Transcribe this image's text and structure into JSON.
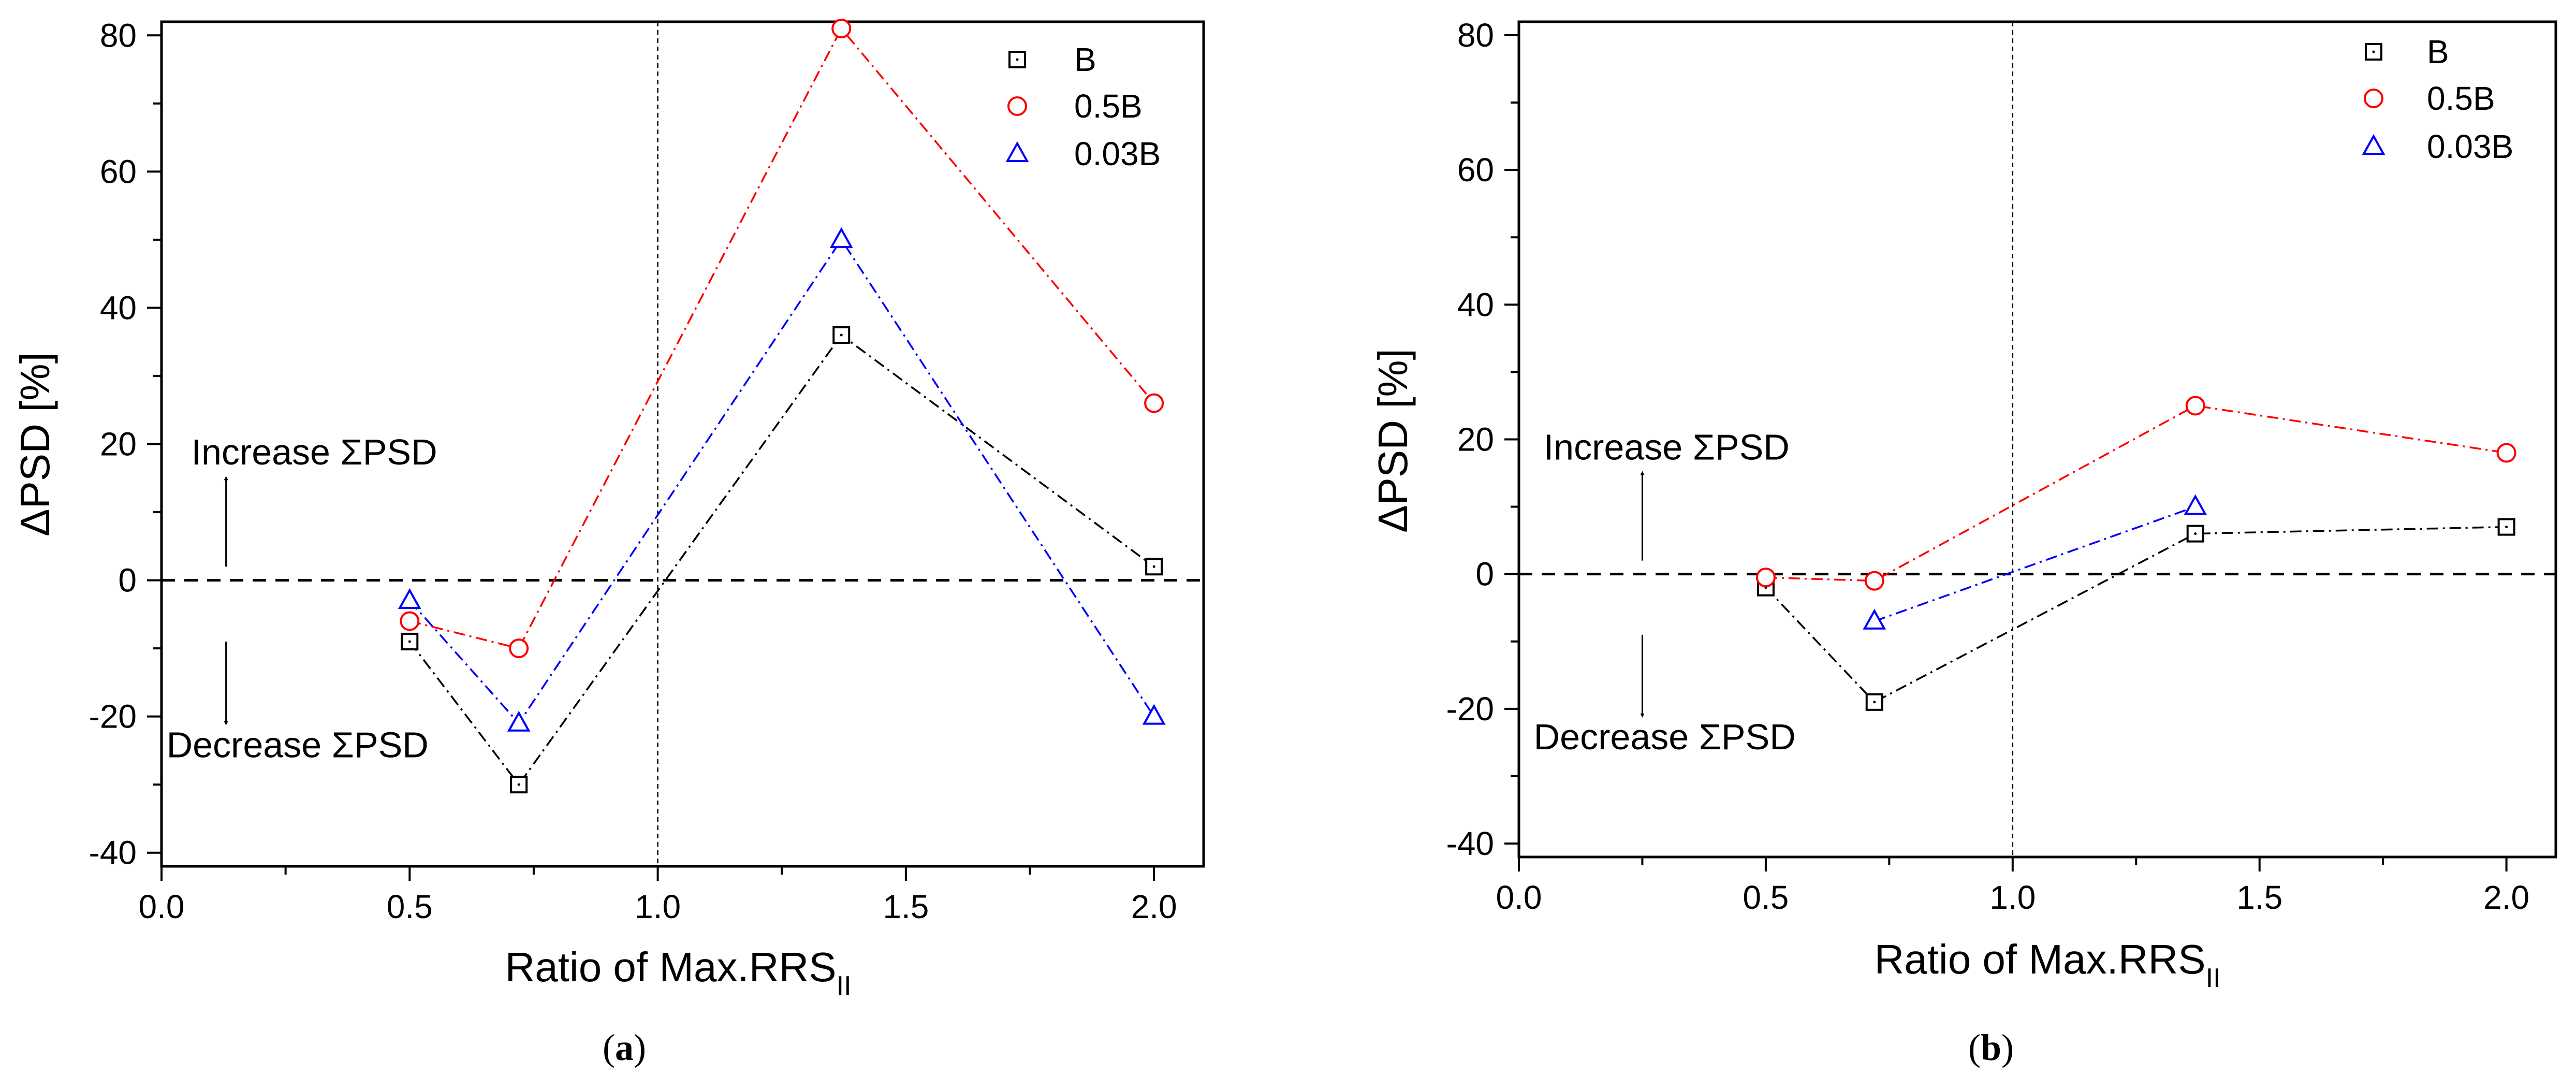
{
  "chart_data": [
    {
      "type": "line",
      "panel": "a",
      "caption_open": "(",
      "caption_letter": "a",
      "caption_close": ")",
      "xlabel": "Ratio of Max.RRS",
      "xlabel_sub": "II",
      "ylabel": "ΔPSD [%]",
      "xlim": [
        0.0,
        2.1
      ],
      "ylim": [
        -42,
        82
      ],
      "xticks": [
        0.0,
        0.5,
        1.0,
        1.5,
        2.0
      ],
      "xtick_labels": [
        "0.0",
        "0.5",
        "1.0",
        "1.5",
        "2.0"
      ],
      "yticks": [
        -40,
        -20,
        0,
        20,
        40,
        60,
        80
      ],
      "ytick_labels": [
        "-40",
        "-20",
        "0",
        "20",
        "40",
        "60",
        "80"
      ],
      "hline_y": 0,
      "vline_x": 1.0,
      "legend_position": "top-right",
      "annotations": {
        "increase": "Increase ΣPSD",
        "decrease": "Decrease ΣPSD",
        "arrow_x": 0.13,
        "increase_text_at": [
          0.06,
          17
        ],
        "decrease_text_at": [
          0.01,
          -26
        ]
      },
      "series": [
        {
          "name": "B",
          "marker": "square",
          "color": "#000000",
          "x": [
            0.5,
            0.72,
            1.37,
            2.0
          ],
          "y": [
            -9,
            -30,
            36,
            2
          ]
        },
        {
          "name": "0.5B",
          "marker": "circle",
          "color": "#ff0000",
          "x": [
            0.5,
            0.72,
            1.37,
            2.0
          ],
          "y": [
            -6,
            -10,
            81,
            26
          ]
        },
        {
          "name": "0.03B",
          "marker": "triangle",
          "color": "#0000ff",
          "x": [
            0.5,
            0.72,
            1.37,
            2.0
          ],
          "y": [
            -3,
            -21,
            50,
            -20
          ]
        }
      ]
    },
    {
      "type": "line",
      "panel": "b",
      "caption_open": "(",
      "caption_letter": "b",
      "caption_close": ")",
      "xlabel": "Ratio of Max.RRS",
      "xlabel_sub": "II",
      "ylabel": "ΔPSD [%]",
      "xlim": [
        0.0,
        2.1
      ],
      "ylim": [
        -42,
        82
      ],
      "xticks": [
        0.0,
        0.5,
        1.0,
        1.5,
        2.0
      ],
      "xtick_labels": [
        "0.0",
        "0.5",
        "1.0",
        "1.5",
        "2.0"
      ],
      "yticks": [
        -40,
        -20,
        0,
        20,
        40,
        60,
        80
      ],
      "ytick_labels": [
        "-40",
        "-20",
        "0",
        "20",
        "40",
        "60",
        "80"
      ],
      "hline_y": 0,
      "vline_x": 1.0,
      "legend_position": "top-right",
      "annotations": {
        "increase": "Increase ΣPSD",
        "decrease": "Decrease ΣPSD",
        "arrow_x": 0.25,
        "increase_text_at": [
          0.05,
          17
        ],
        "decrease_text_at": [
          0.03,
          -26
        ]
      },
      "series": [
        {
          "name": "B",
          "marker": "square",
          "color": "#000000",
          "x": [
            0.5,
            0.72,
            1.37,
            2.0
          ],
          "y": [
            -2,
            -19,
            6,
            7
          ]
        },
        {
          "name": "0.5B",
          "marker": "circle",
          "color": "#ff0000",
          "x": [
            0.5,
            0.72,
            1.37,
            2.0
          ],
          "y": [
            -0.5,
            -1,
            25,
            18
          ]
        },
        {
          "name": "0.03B",
          "marker": "triangle",
          "color": "#0000ff",
          "x": [
            0.72,
            1.37
          ],
          "y": [
            -7,
            10
          ]
        }
      ]
    }
  ]
}
